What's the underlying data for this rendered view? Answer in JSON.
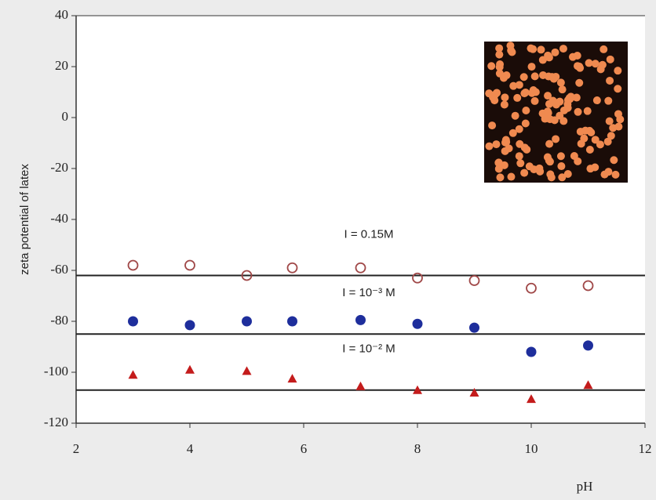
{
  "chart_data": {
    "type": "scatter",
    "y_label": "zeta potential of latex",
    "x_label": "pH",
    "xlim": [
      2,
      12
    ],
    "xticks": [
      2,
      4,
      6,
      8,
      10,
      12
    ],
    "ylim": [
      -120,
      40
    ],
    "yticks": [
      -120,
      -100,
      -80,
      -60,
      -40,
      -20,
      0,
      20,
      40
    ],
    "reference_lines": [
      -62,
      -85,
      -107
    ],
    "series": [
      {
        "name": "I = 0.15M",
        "color": "#a04848",
        "marker": "open-circle",
        "x": [
          3,
          4,
          5,
          5.8,
          7,
          8,
          9,
          10,
          11
        ],
        "values": [
          -58,
          -58,
          -62,
          -59,
          -59,
          -63,
          -64,
          -67,
          -66
        ]
      },
      {
        "name": "I = 10⁻³ M",
        "color": "#1e2e9c",
        "marker": "circle",
        "x": [
          3,
          4,
          5,
          5.8,
          7,
          8,
          9,
          10,
          11
        ],
        "values": [
          -80,
          -81.5,
          -80,
          -80,
          -79.5,
          -81,
          -82.5,
          -92,
          -89.5
        ]
      },
      {
        "name": "I = 10⁻² M",
        "color": "#c41c1c",
        "marker": "triangle",
        "x": [
          3,
          4,
          5,
          5.8,
          7,
          8,
          9,
          10,
          11
        ],
        "values": [
          -101,
          -99,
          -99.5,
          -102.5,
          -105.5,
          -107,
          -108,
          -110.5,
          -105
        ]
      }
    ]
  }
}
